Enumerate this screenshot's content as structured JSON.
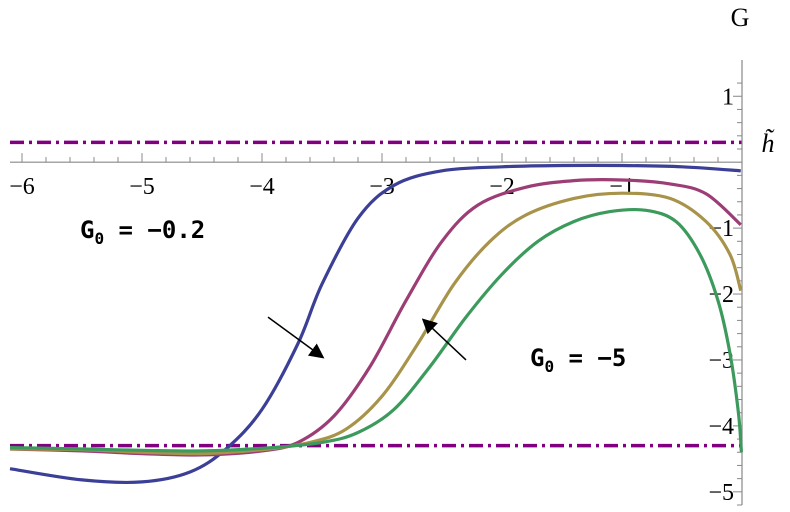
{
  "chart_data": {
    "type": "line",
    "xlabel": "h̃",
    "ylabel": "G",
    "xlim": [
      -6.1,
      0.05
    ],
    "ylim": [
      -5.2,
      1.55
    ],
    "x_ticks": [
      -6,
      -5,
      -4,
      -3,
      -2,
      -1
    ],
    "x_tick_labels": [
      "−6",
      "−5",
      "−4",
      "−3",
      "−2",
      "−1"
    ],
    "y_ticks": [
      1,
      -1,
      -2,
      -3,
      -4,
      -5
    ],
    "y_tick_labels": [
      "1",
      "−1",
      "−2",
      "−3",
      "−4",
      "−5"
    ],
    "reference_lines": [
      {
        "y": 0.3,
        "style": "dash-dot",
        "color": "#800080"
      },
      {
        "y": -4.3,
        "style": "dash-dot",
        "color": "#800080"
      }
    ],
    "series": [
      {
        "color": "#3b3f96",
        "points": [
          [
            -6.1,
            -4.65
          ],
          [
            -5.5,
            -4.82
          ],
          [
            -5.0,
            -4.85
          ],
          [
            -4.6,
            -4.7
          ],
          [
            -4.3,
            -4.35
          ],
          [
            -4.0,
            -3.75
          ],
          [
            -3.7,
            -2.75
          ],
          [
            -3.5,
            -1.85
          ],
          [
            -3.2,
            -0.85
          ],
          [
            -2.9,
            -0.35
          ],
          [
            -2.5,
            -0.13
          ],
          [
            -2.0,
            -0.07
          ],
          [
            -1.5,
            -0.05
          ],
          [
            -1.0,
            -0.05
          ],
          [
            -0.5,
            -0.07
          ],
          [
            -0.01,
            -0.13
          ]
        ]
      },
      {
        "color": "#9c3e75",
        "points": [
          [
            -6.1,
            -4.35
          ],
          [
            -5.5,
            -4.38
          ],
          [
            -5.0,
            -4.42
          ],
          [
            -4.5,
            -4.44
          ],
          [
            -4.0,
            -4.38
          ],
          [
            -3.7,
            -4.25
          ],
          [
            -3.4,
            -3.85
          ],
          [
            -3.1,
            -3.1
          ],
          [
            -2.8,
            -2.1
          ],
          [
            -2.5,
            -1.2
          ],
          [
            -2.2,
            -0.65
          ],
          [
            -1.8,
            -0.38
          ],
          [
            -1.4,
            -0.28
          ],
          [
            -1.0,
            -0.27
          ],
          [
            -0.6,
            -0.33
          ],
          [
            -0.3,
            -0.48
          ],
          [
            -0.01,
            -0.95
          ]
        ]
      },
      {
        "color": "#a8934a",
        "points": [
          [
            -6.1,
            -4.35
          ],
          [
            -5.5,
            -4.36
          ],
          [
            -5.0,
            -4.4
          ],
          [
            -4.5,
            -4.42
          ],
          [
            -4.0,
            -4.36
          ],
          [
            -3.6,
            -4.25
          ],
          [
            -3.3,
            -4.05
          ],
          [
            -3.0,
            -3.55
          ],
          [
            -2.7,
            -2.75
          ],
          [
            -2.4,
            -1.85
          ],
          [
            -2.1,
            -1.2
          ],
          [
            -1.8,
            -0.8
          ],
          [
            -1.4,
            -0.55
          ],
          [
            -1.0,
            -0.47
          ],
          [
            -0.6,
            -0.55
          ],
          [
            -0.3,
            -0.9
          ],
          [
            -0.1,
            -1.4
          ],
          [
            -0.01,
            -1.95
          ]
        ]
      },
      {
        "color": "#3d9a5d",
        "points": [
          [
            -6.1,
            -4.33
          ],
          [
            -5.5,
            -4.35
          ],
          [
            -5.0,
            -4.37
          ],
          [
            -4.5,
            -4.38
          ],
          [
            -4.0,
            -4.34
          ],
          [
            -3.5,
            -4.25
          ],
          [
            -3.2,
            -4.1
          ],
          [
            -2.9,
            -3.75
          ],
          [
            -2.6,
            -3.1
          ],
          [
            -2.3,
            -2.35
          ],
          [
            -2.0,
            -1.7
          ],
          [
            -1.7,
            -1.2
          ],
          [
            -1.4,
            -0.9
          ],
          [
            -1.1,
            -0.75
          ],
          [
            -0.8,
            -0.73
          ],
          [
            -0.55,
            -0.9
          ],
          [
            -0.35,
            -1.4
          ],
          [
            -0.2,
            -2.1
          ],
          [
            -0.1,
            -2.9
          ],
          [
            -0.03,
            -3.8
          ],
          [
            -0.005,
            -4.4
          ]
        ]
      }
    ],
    "annotations": [
      {
        "main": "G",
        "sub": "0",
        "rest": " = −0.2",
        "arrow_from": [
          -3.95,
          -2.35
        ],
        "arrow_to": [
          -3.5,
          -2.95
        ]
      },
      {
        "main": "G",
        "sub": "0",
        "rest": " = −5",
        "arrow_from": [
          -2.3,
          -3.0
        ],
        "arrow_to": [
          -2.65,
          -2.4
        ]
      }
    ]
  }
}
